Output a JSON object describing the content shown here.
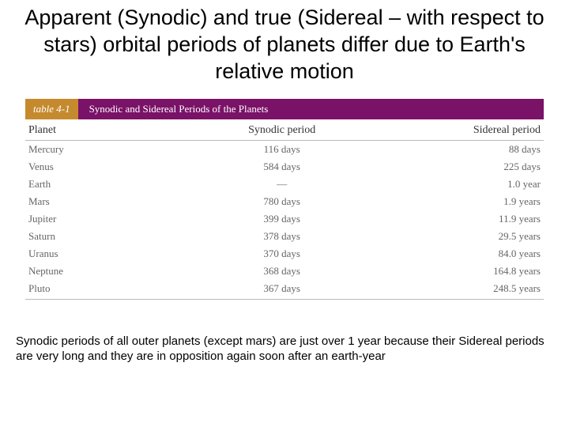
{
  "title": "Apparent (Synodic) and true (Sidereal – with respect to stars) orbital periods of planets differ due to Earth's relative motion",
  "table": {
    "label": "table 4-1",
    "caption": "Synodic and Sidereal Periods of the Planets",
    "header_bg_label": "#c58a2e",
    "header_bg_caption": "#7a1268",
    "header_text_color": "#ffffff",
    "border_color": "#bbbbbb",
    "body_text_color": "#666666",
    "font_family": "Georgia, serif",
    "columns": [
      {
        "key": "planet",
        "label": "Planet",
        "align": "left"
      },
      {
        "key": "synodic",
        "label": "Synodic period",
        "align": "center"
      },
      {
        "key": "sidereal",
        "label": "Sidereal period",
        "align": "right"
      }
    ],
    "rows": [
      {
        "planet": "Mercury",
        "synodic": "116 days",
        "sidereal": "88 days"
      },
      {
        "planet": "Venus",
        "synodic": "584 days",
        "sidereal": "225 days"
      },
      {
        "planet": "Earth",
        "synodic": "—",
        "sidereal": "1.0 year"
      },
      {
        "planet": "Mars",
        "synodic": "780 days",
        "sidereal": "1.9 years"
      },
      {
        "planet": "Jupiter",
        "synodic": "399 days",
        "sidereal": "11.9 years"
      },
      {
        "planet": "Saturn",
        "synodic": "378 days",
        "sidereal": "29.5 years"
      },
      {
        "planet": "Uranus",
        "synodic": "370 days",
        "sidereal": "84.0 years"
      },
      {
        "planet": "Neptune",
        "synodic": "368 days",
        "sidereal": "164.8 years"
      },
      {
        "planet": "Pluto",
        "synodic": "367 days",
        "sidereal": "248.5 years"
      }
    ]
  },
  "footnote": "Synodic periods of all outer planets (except mars) are just over 1 year because their Sidereal periods are very long and they are in opposition again soon after an earth-year"
}
